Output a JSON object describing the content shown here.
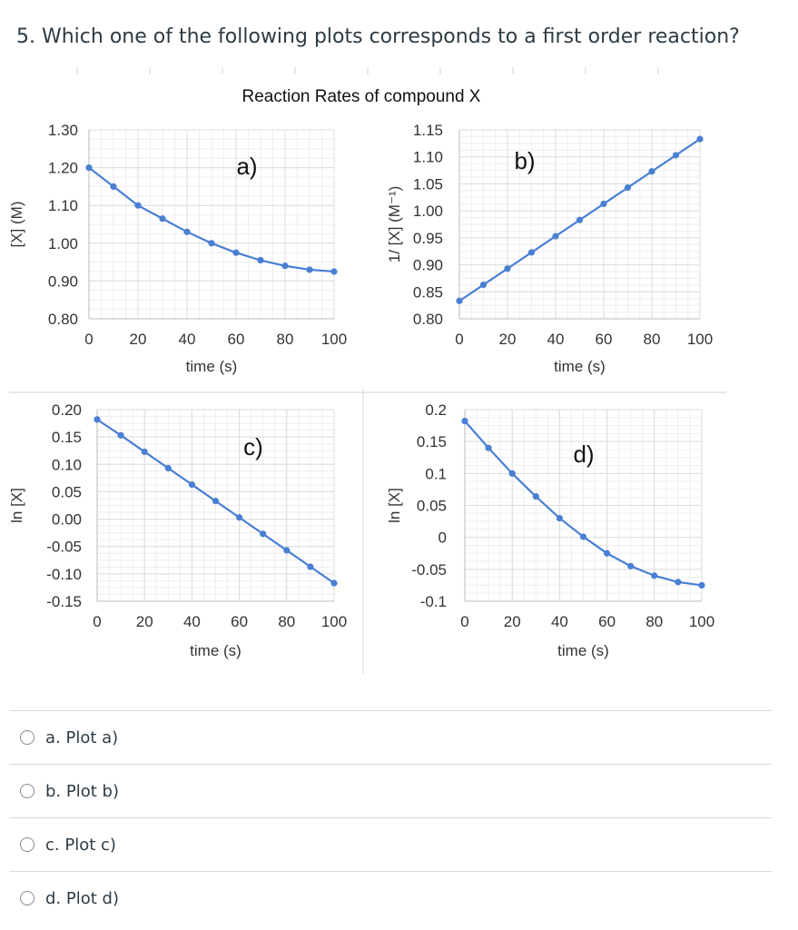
{
  "question": {
    "text": "5. Which one of the following plots corresponds to a first order reaction?"
  },
  "figure": {
    "title": "Reaction Rates of compound X"
  },
  "chart_data": [
    {
      "type": "line",
      "panel": "a)",
      "xlabel": "time (s)",
      "ylabel": "[X] (M)",
      "x": [
        0,
        10,
        20,
        30,
        40,
        50,
        60,
        70,
        80,
        90,
        100
      ],
      "values": [
        1.2,
        1.15,
        1.1,
        1.065,
        1.03,
        1.0,
        0.975,
        0.955,
        0.94,
        0.93,
        0.925
      ],
      "xlim": [
        0,
        100
      ],
      "ylim": [
        0.8,
        1.3
      ],
      "xticks": [
        "0",
        "20",
        "40",
        "60",
        "80",
        "100"
      ],
      "yticks": [
        "0.80",
        "0.90",
        "1.00",
        "1.10",
        "1.20",
        "1.30"
      ],
      "series_color": "#4a7fd4"
    },
    {
      "type": "line",
      "panel": "b)",
      "xlabel": "time (s)",
      "ylabel": "1/ [X] (M⁻¹)",
      "x": [
        0,
        10,
        20,
        30,
        40,
        50,
        60,
        70,
        80,
        90,
        100
      ],
      "values": [
        0.833,
        0.863,
        0.893,
        0.923,
        0.953,
        0.983,
        1.013,
        1.043,
        1.073,
        1.103,
        1.133
      ],
      "xlim": [
        0,
        100
      ],
      "ylim": [
        0.8,
        1.15
      ],
      "xticks": [
        "0",
        "20",
        "40",
        "60",
        "80",
        "100"
      ],
      "yticks": [
        "0.80",
        "0.85",
        "0.90",
        "0.95",
        "1.00",
        "1.05",
        "1.10",
        "1.15"
      ],
      "series_color": "#4a7fd4"
    },
    {
      "type": "line",
      "panel": "c)",
      "xlabel": "time (s)",
      "ylabel": "ln [X]",
      "x": [
        0,
        10,
        20,
        30,
        40,
        50,
        60,
        70,
        80,
        90,
        100
      ],
      "values": [
        0.182,
        0.153,
        0.123,
        0.093,
        0.063,
        0.033,
        0.003,
        -0.027,
        -0.057,
        -0.087,
        -0.117
      ],
      "xlim": [
        0,
        100
      ],
      "ylim": [
        -0.15,
        0.2
      ],
      "xticks": [
        "0",
        "20",
        "40",
        "60",
        "80",
        "100"
      ],
      "yticks": [
        "-0.15",
        "-0.10",
        "-0.05",
        "0.00",
        "0.05",
        "0.10",
        "0.15",
        "0.20"
      ],
      "series_color": "#4a7fd4"
    },
    {
      "type": "line",
      "panel": "d)",
      "xlabel": "time (s)",
      "ylabel": "ln [X]",
      "x": [
        0,
        10,
        20,
        30,
        40,
        50,
        60,
        70,
        80,
        90,
        100
      ],
      "values": [
        0.182,
        0.14,
        0.1,
        0.064,
        0.03,
        0.001,
        -0.025,
        -0.045,
        -0.06,
        -0.07,
        -0.075
      ],
      "xlim": [
        0,
        100
      ],
      "ylim": [
        -0.1,
        0.2
      ],
      "xticks": [
        "0",
        "20",
        "40",
        "60",
        "80",
        "100"
      ],
      "yticks": [
        "-0.1",
        "-0.05",
        "0",
        "0.05",
        "0.1",
        "0.15",
        "0.2"
      ],
      "series_color": "#4a7fd4"
    }
  ],
  "answers": [
    {
      "label": "a. Plot a)"
    },
    {
      "label": "b. Plot b)"
    },
    {
      "label": "c. Plot c)"
    },
    {
      "label": "d. Plot d)"
    }
  ]
}
